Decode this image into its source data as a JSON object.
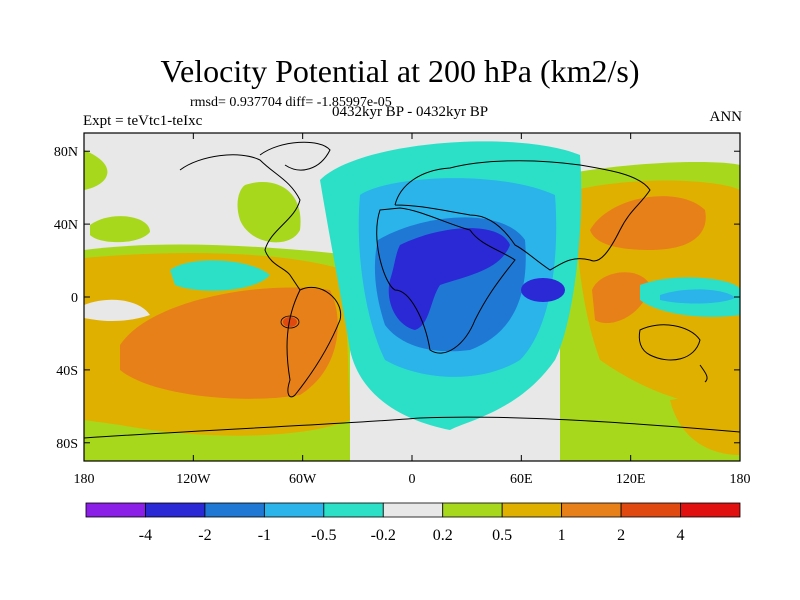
{
  "chart_data": {
    "type": "heatmap",
    "title": "Velocity Potential at 200 hPa (km2/s)",
    "stats_text": "rmsd= 0.937704 diff= -1.85997e-05",
    "left_label": "Expt = teVtc1-teIxc",
    "center_label": "0432kyr BP - 0432kyr BP",
    "right_label": "ANN",
    "x_ticks": [
      "180",
      "120W",
      "60W",
      "0",
      "60E",
      "120E",
      "180"
    ],
    "y_ticks": [
      "80N",
      "40N",
      "0",
      "40S",
      "80S"
    ],
    "lon_range": [
      -180,
      180
    ],
    "lat_range": [
      -90,
      90
    ],
    "colorbar": {
      "labels": [
        "-4",
        "-2",
        "-1",
        "-0.5",
        "-0.2",
        "0.2",
        "0.5",
        "1",
        "2",
        "4"
      ],
      "colors": [
        "#8b1fe8",
        "#2b28d6",
        "#1f78d4",
        "#2ab4ea",
        "#2ce0c8",
        "#e8e8e8",
        "#a8d81c",
        "#e0b000",
        "#e8801a",
        "#e04a10",
        "#e01010"
      ]
    },
    "fields": [
      {
        "name": "africa-indian-low",
        "level": -2,
        "approx_center": [
          30,
          0
        ]
      },
      {
        "name": "eurasia-indian-negative",
        "level": -0.5,
        "approx_center": [
          40,
          20
        ]
      },
      {
        "name": "south-pacific-high",
        "level": 2,
        "approx_center": [
          -100,
          -20
        ]
      },
      {
        "name": "east-asia-high",
        "level": 2,
        "approx_center": [
          135,
          35
        ]
      },
      {
        "name": "maritime-continent-high",
        "level": 2,
        "approx_center": [
          115,
          -5
        ]
      }
    ]
  }
}
